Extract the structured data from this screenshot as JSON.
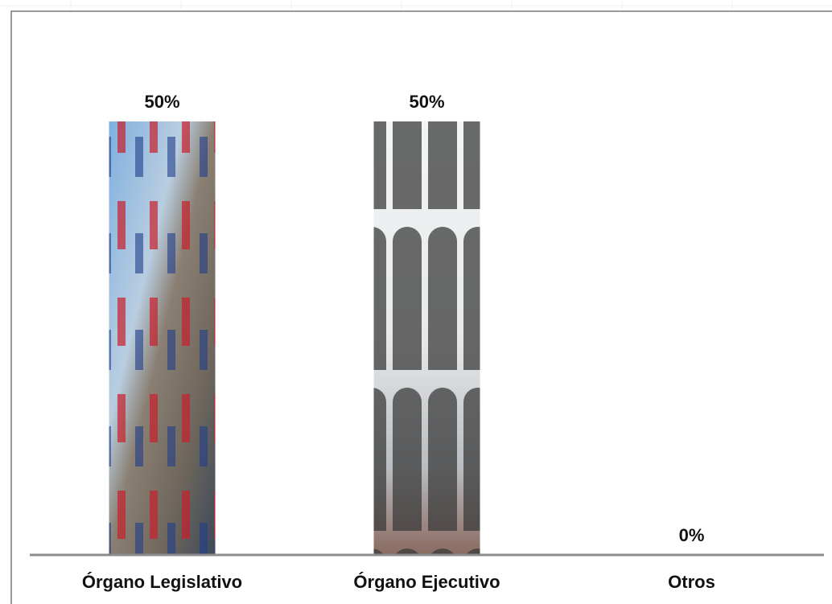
{
  "chart_data": {
    "type": "bar",
    "categories": [
      "Órgano Legislativo",
      "Órgano Ejecutivo",
      "Otros"
    ],
    "values": [
      50,
      50,
      0
    ],
    "value_labels": [
      "50%",
      "50%",
      "0%"
    ]
  }
}
